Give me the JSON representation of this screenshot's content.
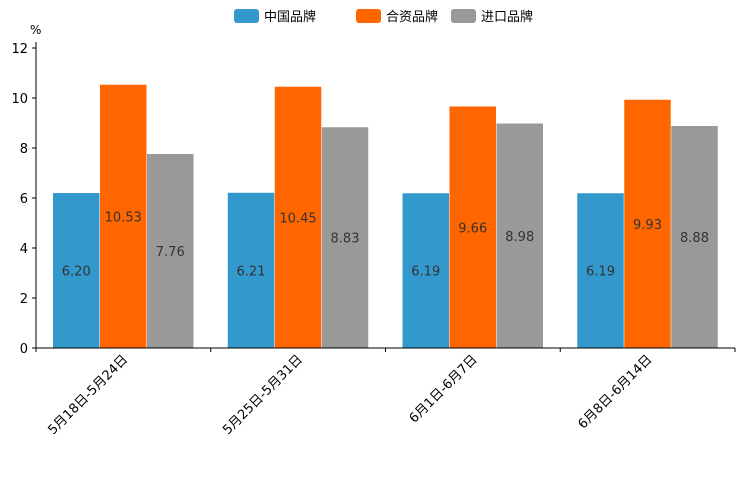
{
  "chart_data": {
    "type": "bar",
    "title": "",
    "xlabel": "",
    "ylabel": "%",
    "ylim": [
      0,
      12
    ],
    "yticks": [
      0,
      2,
      4,
      6,
      8,
      10,
      12
    ],
    "grid": false,
    "legend_position": "top-center",
    "categories": [
      "5月18日-5月24日",
      "5月25日-5月31日",
      "6月1日-6月7日",
      "6月8日-6月14日"
    ],
    "series": [
      {
        "name": "中国品牌",
        "color": "#3399CC",
        "values": [
          6.2,
          6.21,
          6.19,
          6.19
        ],
        "labels": [
          "6.20",
          "6.21",
          "6.19",
          "6.19"
        ]
      },
      {
        "name": "合资品牌",
        "color": "#FF6600",
        "values": [
          10.53,
          10.45,
          9.66,
          9.93
        ],
        "labels": [
          "10.53",
          "10.45",
          "9.66",
          "9.93"
        ]
      },
      {
        "name": "进口品牌",
        "color": "#999999",
        "values": [
          7.76,
          8.83,
          8.98,
          8.88
        ],
        "labels": [
          "7.76",
          "8.83",
          "8.98",
          "8.88"
        ]
      }
    ]
  }
}
